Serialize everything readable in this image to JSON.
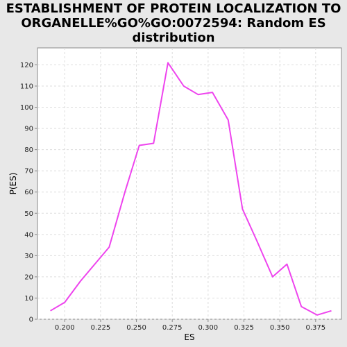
{
  "chart_data": {
    "type": "line",
    "title": "ESTABLISHMENT OF PROTEIN LOCALIZATION TO ORGANELLE%GO%GO:0072594: Random ES distribution",
    "title_lines": [
      "ESTABLISHMENT OF PROTEIN LOCALIZATION TO",
      "ORGANELLE%GO%GO:0072594: Random ES",
      "distribution"
    ],
    "xlabel": "ES",
    "ylabel": "P(ES)",
    "xlim": [
      0.181,
      0.393
    ],
    "ylim": [
      0,
      128
    ],
    "x_ticks": [
      0.2,
      0.225,
      0.25,
      0.275,
      0.3,
      0.325,
      0.35,
      0.375
    ],
    "x_tick_labels": [
      "0.200",
      "0.225",
      "0.250",
      "0.275",
      "0.300",
      "0.325",
      "0.350",
      "0.375"
    ],
    "y_ticks": [
      0,
      10,
      20,
      30,
      40,
      50,
      60,
      70,
      80,
      90,
      100,
      110,
      120
    ],
    "y_tick_labels": [
      "0",
      "10",
      "20",
      "30",
      "40",
      "50",
      "60",
      "70",
      "80",
      "90",
      "100",
      "110",
      "120"
    ],
    "grid": true,
    "series": [
      {
        "color": "#ee44ee",
        "x": [
          0.19,
          0.2,
          0.211,
          0.221,
          0.231,
          0.242,
          0.252,
          0.262,
          0.272,
          0.283,
          0.293,
          0.303,
          0.314,
          0.324,
          0.334,
          0.345,
          0.355,
          0.365,
          0.376,
          0.386
        ],
        "y": [
          4,
          8,
          18,
          26,
          34,
          60,
          82,
          83,
          121,
          110,
          106,
          107,
          94,
          52,
          37,
          20,
          26,
          6,
          2,
          4
        ]
      }
    ]
  }
}
